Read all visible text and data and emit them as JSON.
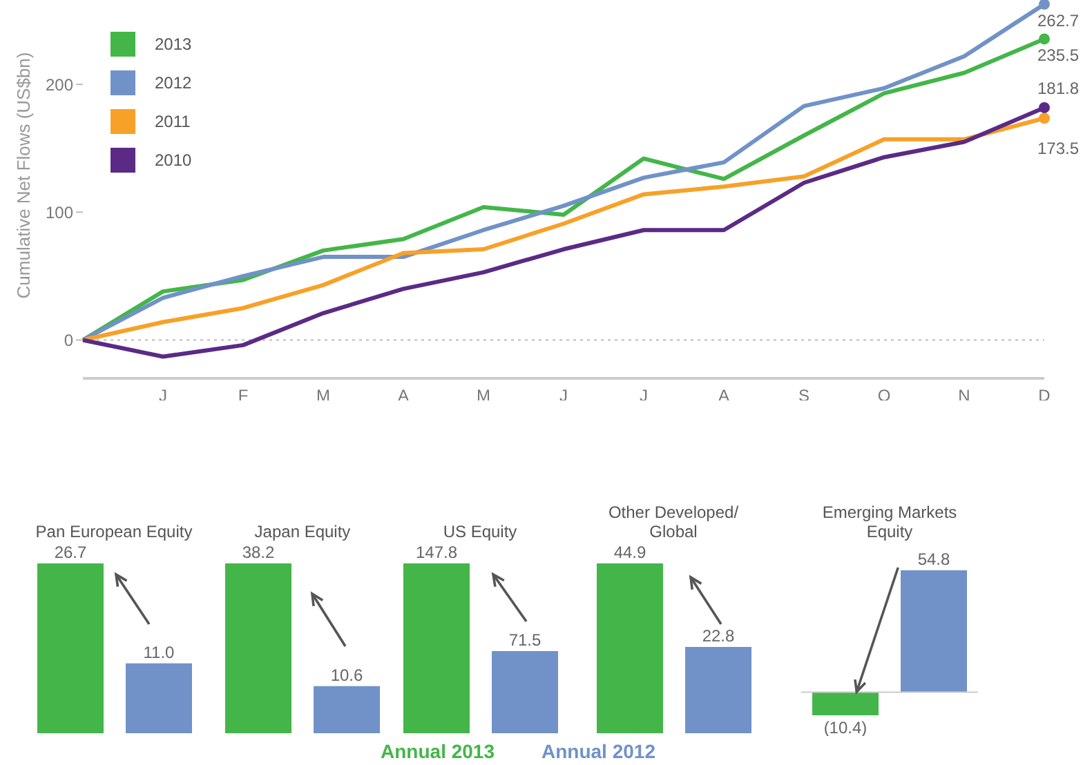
{
  "chart_data": [
    {
      "type": "line",
      "ylabel": "Cumulative Net Flows (US$bn)",
      "categories": [
        null,
        "J",
        "F",
        "M",
        "A",
        "M",
        "J",
        "J",
        "A",
        "S",
        "O",
        "N",
        "D"
      ],
      "ylim": [
        -30,
        266
      ],
      "yticks": [
        0,
        100,
        200
      ],
      "legend": "top left",
      "marker": "none",
      "line_style": "solid",
      "ref_lines": [
        {
          "axis": "y",
          "value": 0,
          "line_style": "dotted",
          "color": "#bbbbbb"
        }
      ],
      "series": [
        {
          "name": "2013",
          "color": "#44b649",
          "values": [
            0,
            38,
            47,
            70,
            79,
            104,
            98,
            142,
            126,
            160,
            193,
            209,
            235.5
          ],
          "value_labels": [
            null,
            null,
            null,
            null,
            null,
            null,
            null,
            null,
            null,
            null,
            null,
            null,
            "235.5"
          ]
        },
        {
          "name": "2012",
          "color": "#7092c8",
          "values": [
            0,
            33,
            50,
            65,
            65,
            86,
            105,
            127,
            139,
            183,
            197,
            222,
            262.7
          ],
          "value_labels": [
            null,
            null,
            null,
            null,
            null,
            null,
            null,
            null,
            null,
            null,
            null,
            null,
            "262.7"
          ]
        },
        {
          "name": "2011",
          "color": "#f7a128",
          "values": [
            0,
            14,
            25,
            43,
            68,
            71,
            91,
            114,
            120,
            128,
            157,
            157,
            173.5
          ],
          "value_labels": [
            null,
            null,
            null,
            null,
            null,
            null,
            null,
            null,
            null,
            null,
            null,
            null,
            "173.5"
          ]
        },
        {
          "name": "2010",
          "color": "#5b2a86",
          "values": [
            0,
            -13,
            -4,
            21,
            40,
            53,
            71,
            86,
            86,
            123,
            143,
            155,
            181.8
          ],
          "value_labels": [
            null,
            null,
            null,
            null,
            null,
            null,
            null,
            null,
            null,
            null,
            null,
            null,
            "181.8"
          ]
        }
      ]
    },
    {
      "type": "bar",
      "title": "Pan European Equity",
      "categories": [
        null
      ],
      "ylim": [
        0,
        26.7
      ],
      "series": [
        {
          "color": "#44b649",
          "values": [
            26.7
          ],
          "value_labels": [
            "26.7"
          ]
        },
        {
          "color": "#7092c8",
          "values": [
            11.0
          ],
          "value_labels": [
            "11.0"
          ]
        }
      ]
    },
    {
      "type": "bar",
      "title": "Japan Equity",
      "categories": [
        null
      ],
      "ylim": [
        0,
        38.2
      ],
      "series": [
        {
          "color": "#44b649",
          "values": [
            38.2
          ],
          "value_labels": [
            "38.2"
          ]
        },
        {
          "color": "#7092c8",
          "values": [
            10.6
          ],
          "value_labels": [
            "10.6"
          ]
        }
      ]
    },
    {
      "type": "bar",
      "title": "US Equity",
      "categories": [
        null
      ],
      "ylim": [
        0,
        147.8
      ],
      "legend": "bottom",
      "series": [
        {
          "name": "Annual 2013",
          "color": "#44b649",
          "values": [
            147.8
          ],
          "value_labels": [
            "147.8"
          ]
        },
        {
          "name": "Annual 2012",
          "color": "#7092c8",
          "values": [
            71.5
          ],
          "value_labels": [
            "71.5"
          ]
        }
      ]
    },
    {
      "type": "bar",
      "title": "Other Developed/ Global",
      "categories": [
        null
      ],
      "ylim": [
        0,
        44.9
      ],
      "series": [
        {
          "color": "#44b649",
          "values": [
            44.9
          ],
          "value_labels": [
            "44.9"
          ]
        },
        {
          "color": "#7092c8",
          "values": [
            22.8
          ],
          "value_labels": [
            "22.8"
          ]
        }
      ]
    },
    {
      "type": "bar",
      "title": "Emerging Markets Equity",
      "categories": [
        null
      ],
      "ylim": [
        -10.4,
        54.8
      ],
      "ref_lines": [
        {
          "axis": "y",
          "value": 0,
          "color": "#cccccc"
        }
      ],
      "series": [
        {
          "color": "#44b649",
          "values": [
            -10.4
          ],
          "value_labels": [
            "(10.4)"
          ]
        },
        {
          "color": "#7092c8",
          "values": [
            54.8
          ],
          "value_labels": [
            "54.8"
          ]
        }
      ]
    }
  ]
}
